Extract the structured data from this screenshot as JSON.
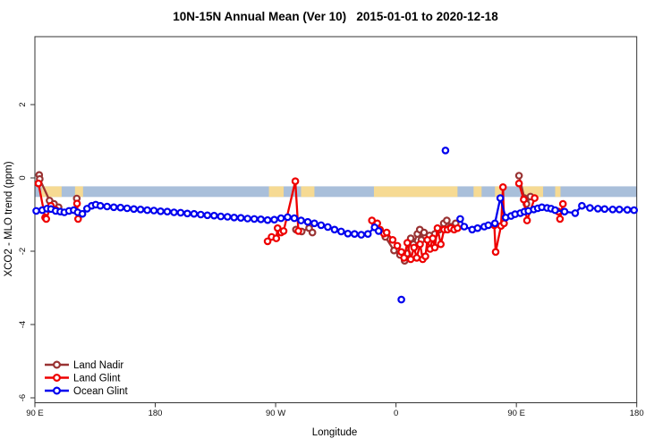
{
  "title": {
    "full": "10N-15N Annual Mean (Ver 10)   2015-01-01 to 2020-12-18"
  },
  "chart_data": {
    "type": "line",
    "title": "10N-15N Annual Mean (Ver 10)  2015-01-01 to 2020-12-18",
    "xlabel": "Longitude",
    "ylabel": "XCO2 - MLO trend (ppm)",
    "xlim": [
      90,
      540
    ],
    "ylim": [
      -6.15,
      3.85
    ],
    "x_ticks": [
      {
        "lon": 90,
        "label": "90 E"
      },
      {
        "lon": 180,
        "label": "180"
      },
      {
        "lon": 270,
        "label": "90 W"
      },
      {
        "lon": 360,
        "label": "0"
      },
      {
        "lon": 450,
        "label": "90 E"
      },
      {
        "lon": 540,
        "label": "180"
      }
    ],
    "y_ticks": [
      2,
      0,
      -2,
      -4,
      -6
    ],
    "grid": false,
    "map_band": {
      "comment": "thin world-map strip of the 10N-15N latitude band drawn across the plot",
      "value_top": -0.23,
      "value_bottom": -0.52,
      "ocean_color": "#a9bfda",
      "land_color": "#f6da93",
      "land_segments": [
        [
          95,
          110
        ],
        [
          120,
          126
        ],
        [
          265,
          276
        ],
        [
          289,
          299
        ],
        [
          343.5,
          406
        ],
        [
          418,
          424
        ],
        [
          434,
          439
        ],
        [
          455,
          470
        ],
        [
          479,
          483
        ]
      ]
    },
    "legend": {
      "position": "bottom-left",
      "entries": [
        {
          "label": "Land Nadir"
        },
        {
          "label": "Land Glint"
        },
        {
          "label": "Ocean Glint"
        }
      ]
    },
    "series": [
      {
        "name": "Land Nadir",
        "color": "#993333",
        "segments": [
          [
            [
              93.2,
              0.08
            ],
            [
              93.6,
              -0.03
            ],
            [
              101,
              -0.62
            ],
            [
              104.3,
              -0.71
            ],
            [
              107.7,
              -0.8
            ]
          ],
          [
            [
              121.3,
              -0.56
            ]
          ],
          [
            [
              285.2,
              -1.41
            ],
            [
              289.5,
              -1.46
            ],
            [
              295,
              -1.37
            ],
            [
              297.5,
              -1.49
            ]
          ],
          [
            [
              352,
              -1.61
            ],
            [
              358.5,
              -1.98
            ],
            [
              363,
              -2.1
            ],
            [
              366.5,
              -2.26
            ],
            [
              368.5,
              -2.06
            ],
            [
              371,
              -1.65
            ],
            [
              373,
              -1.81
            ],
            [
              376,
              -1.53
            ],
            [
              377.8,
              -1.41
            ],
            [
              379,
              -1.69
            ],
            [
              381,
              -1.49
            ],
            [
              385,
              -1.57
            ],
            [
              389,
              -1.53
            ],
            [
              392.3,
              -1.41
            ],
            [
              395.7,
              -1.24
            ],
            [
              398,
              -1.16
            ],
            [
              401,
              -1.33
            ],
            [
              404.6,
              -1.24
            ]
          ],
          [
            [
              452,
              0.06
            ],
            [
              456,
              -0.55
            ],
            [
              457.5,
              -0.71
            ],
            [
              460.5,
              -0.51
            ]
          ]
        ],
        "outliers": []
      },
      {
        "name": "Land Glint",
        "color": "#ee0000",
        "segments": [
          [
            [
              92.7,
              -0.15
            ],
            [
              97.6,
              -1.08
            ],
            [
              98.5,
              -1.12
            ],
            [
              102,
              -0.76
            ],
            [
              105.5,
              -0.87
            ]
          ],
          [
            [
              121.5,
              -0.7
            ],
            [
              122.3,
              -1.12
            ]
          ],
          [
            [
              264,
              -1.73
            ],
            [
              267,
              -1.61
            ],
            [
              270.5,
              -1.65
            ],
            [
              271.5,
              -1.37
            ],
            [
              274,
              -1.49
            ],
            [
              276,
              -1.45
            ],
            [
              284.7,
              -0.09
            ],
            [
              287,
              -1.45
            ]
          ],
          [
            [
              342,
              -1.16
            ],
            [
              344.5,
              -1.29
            ],
            [
              346,
              -1.24
            ],
            [
              348,
              -1.41
            ],
            [
              351,
              -1.52
            ],
            [
              353,
              -1.49
            ],
            [
              357.5,
              -1.69
            ],
            [
              361,
              -1.85
            ],
            [
              364,
              -2.02
            ],
            [
              366,
              -2.18
            ],
            [
              368.5,
              -1.77
            ],
            [
              371,
              -2.22
            ],
            [
              373.5,
              -1.9
            ],
            [
              375.5,
              -2.18
            ],
            [
              378,
              -1.81
            ],
            [
              380,
              -2.22
            ],
            [
              382,
              -2.14
            ],
            [
              383.5,
              -1.69
            ],
            [
              385.5,
              -1.94
            ],
            [
              387.5,
              -1.65
            ],
            [
              389,
              -1.9
            ],
            [
              391,
              -1.37
            ],
            [
              393.5,
              -1.81
            ],
            [
              396,
              -1.41
            ],
            [
              398.5,
              -1.41
            ],
            [
              401,
              -1.37
            ],
            [
              403.5,
              -1.41
            ],
            [
              406,
              -1.37
            ]
          ],
          [
            [
              433.5,
              -1.29
            ],
            [
              434.5,
              -2.02
            ],
            [
              438.5,
              -1.31
            ],
            [
              440,
              -0.25
            ],
            [
              440.8,
              -1.24
            ]
          ],
          [
            [
              452,
              -0.15
            ],
            [
              455.5,
              -0.59
            ],
            [
              458,
              -1.16
            ],
            [
              463.7,
              -0.55
            ]
          ],
          [
            [
              481.5,
              -0.92
            ],
            [
              482.6,
              -1.12
            ],
            [
              484.8,
              -0.71
            ]
          ]
        ],
        "outliers": []
      },
      {
        "name": "Ocean Glint",
        "color": "#0000ee",
        "segments": [
          [
            [
              91,
              -0.9
            ],
            [
              95.5,
              -0.88
            ],
            [
              99,
              -0.84
            ],
            [
              102,
              -0.85
            ],
            [
              105.5,
              -0.9
            ],
            [
              109,
              -0.92
            ],
            [
              112,
              -0.94
            ],
            [
              115.5,
              -0.9
            ],
            [
              119,
              -0.88
            ],
            [
              122,
              -0.94
            ],
            [
              125.5,
              -0.98
            ],
            [
              129,
              -0.84
            ],
            [
              132.5,
              -0.76
            ],
            [
              135.5,
              -0.73
            ],
            [
              139,
              -0.76
            ],
            [
              144,
              -0.78
            ],
            [
              149,
              -0.8
            ],
            [
              154,
              -0.81
            ],
            [
              159,
              -0.83
            ],
            [
              164,
              -0.85
            ],
            [
              169,
              -0.86
            ],
            [
              174,
              -0.88
            ],
            [
              179,
              -0.89
            ],
            [
              184,
              -0.91
            ],
            [
              189,
              -0.92
            ],
            [
              194,
              -0.94
            ],
            [
              199,
              -0.95
            ],
            [
              204,
              -0.97
            ],
            [
              209,
              -0.98
            ],
            [
              214,
              -1.0
            ],
            [
              219,
              -1.02
            ],
            [
              224,
              -1.03
            ],
            [
              229,
              -1.05
            ],
            [
              234,
              -1.06
            ],
            [
              239,
              -1.08
            ],
            [
              244,
              -1.09
            ],
            [
              249,
              -1.11
            ],
            [
              254,
              -1.12
            ],
            [
              259,
              -1.13
            ],
            [
              264,
              -1.15
            ],
            [
              269,
              -1.14
            ],
            [
              274,
              -1.1
            ],
            [
              279,
              -1.07
            ],
            [
              284,
              -1.1
            ],
            [
              289,
              -1.16
            ],
            [
              294,
              -1.2
            ],
            [
              299,
              -1.24
            ],
            [
              304,
              -1.29
            ],
            [
              309,
              -1.34
            ],
            [
              314,
              -1.41
            ],
            [
              319,
              -1.46
            ],
            [
              324,
              -1.52
            ],
            [
              329,
              -1.53
            ],
            [
              334,
              -1.55
            ],
            [
              339,
              -1.53
            ],
            [
              344,
              -1.35
            ],
            [
              347,
              -1.45
            ]
          ],
          [
            [
              408,
              -1.12
            ],
            [
              411,
              -1.33
            ],
            [
              417,
              -1.41
            ],
            [
              421,
              -1.37
            ],
            [
              426,
              -1.33
            ],
            [
              429,
              -1.29
            ],
            [
              434,
              -1.24
            ],
            [
              438,
              -0.55
            ],
            [
              442,
              -1.08
            ],
            [
              446,
              -1.04
            ],
            [
              449,
              -0.99
            ],
            [
              453,
              -0.96
            ],
            [
              456,
              -0.92
            ],
            [
              459,
              -0.9
            ],
            [
              463,
              -0.86
            ],
            [
              466,
              -0.83
            ],
            [
              469,
              -0.8
            ],
            [
              473,
              -0.82
            ],
            [
              476,
              -0.84
            ],
            [
              479,
              -0.88
            ],
            [
              486,
              -0.92
            ],
            [
              494,
              -0.96
            ],
            [
              499,
              -0.76
            ],
            [
              505,
              -0.82
            ],
            [
              511,
              -0.84
            ],
            [
              516,
              -0.85
            ],
            [
              522,
              -0.86
            ],
            [
              527,
              -0.86
            ],
            [
              533,
              -0.87
            ],
            [
              538,
              -0.88
            ]
          ]
        ],
        "outliers": [
          [
            364,
            -3.32
          ],
          [
            397,
            0.75
          ]
        ]
      }
    ]
  }
}
